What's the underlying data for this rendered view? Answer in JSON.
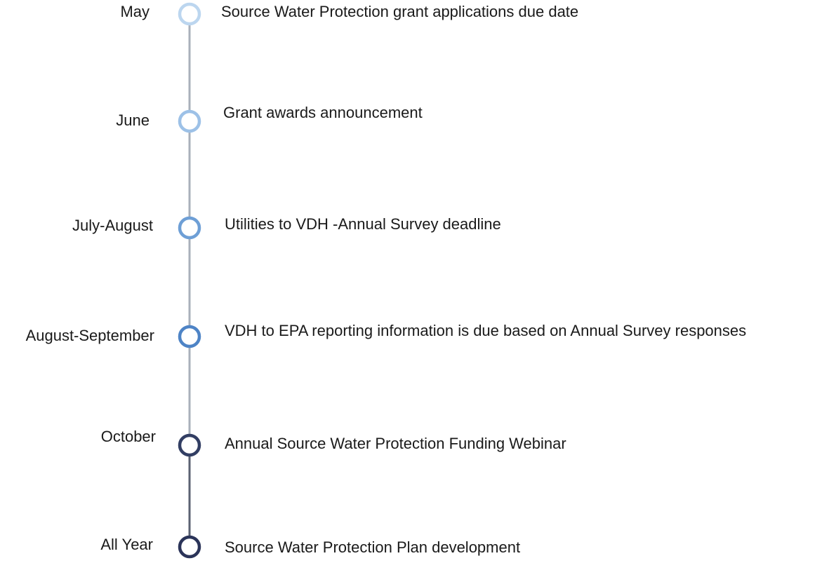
{
  "timeline": {
    "items": [
      {
        "label": "May",
        "description": "Source Water Protection grant applications due date"
      },
      {
        "label": "June",
        "description": "Grant awards announcement"
      },
      {
        "label": "July-August",
        "description": "Utilities to VDH -Annual Survey deadline"
      },
      {
        "label": "August-September",
        "description": "VDH to EPA reporting information is due based on Annual Survey responses"
      },
      {
        "label": "October",
        "description": "Annual Source Water Protection Funding Webinar"
      },
      {
        "label": "All Year",
        "description": "Source Water Protection Plan development"
      }
    ]
  }
}
